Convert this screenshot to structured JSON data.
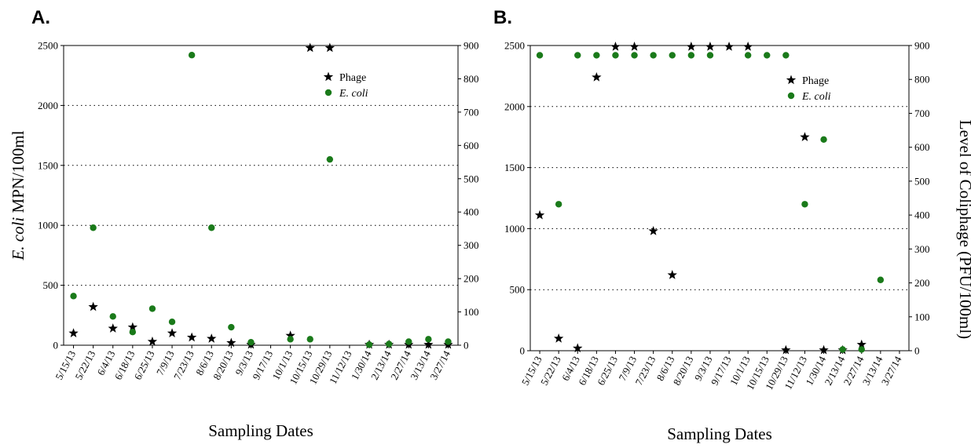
{
  "chart_data": [
    {
      "panel": "A.",
      "type": "scatter",
      "xlabel": "Sampling Dates",
      "ylabel_left": {
        "italic": "E. coli",
        "rest": " MPN/100ml"
      },
      "ylabel_right": "",
      "ylim_left": [
        0,
        2500
      ],
      "ylim_right": [
        0,
        900
      ],
      "yticks_left": [
        0,
        500,
        1000,
        1500,
        2000,
        2500
      ],
      "yticks_right": [
        0,
        100,
        200,
        300,
        400,
        500,
        600,
        700,
        800,
        900
      ],
      "gridlines_left": [
        500,
        1000,
        1500,
        2000
      ],
      "categories": [
        "5/15/13",
        "5/22/13",
        "6/4/13",
        "6/18/13",
        "6/25/13",
        "7/9/13",
        "7/23/13",
        "8/6/13",
        "8/20/13",
        "9/3/13",
        "9/17/13",
        "10/1/13",
        "10/15/13",
        "10/29/13",
        "11/12/13",
        "1/30/14",
        "2/13/14",
        "2/27/14",
        "3/13/14",
        "3/27/14"
      ],
      "legend": {
        "position": "top-right",
        "entries": [
          {
            "symbol": "star",
            "label": "Phage",
            "italic": false
          },
          {
            "symbol": "circle",
            "label": "E. coli",
            "italic": true
          }
        ]
      },
      "colors": {
        "phage": "#000000",
        "ecoli": "#1a7a1a"
      },
      "series": [
        {
          "name": "Phage",
          "symbol": "star",
          "axis": "left",
          "points": [
            [
              0.5,
              100
            ],
            [
              1.5,
              320
            ],
            [
              2.5,
              140
            ],
            [
              3.5,
              150
            ],
            [
              4.5,
              30
            ],
            [
              5.5,
              100
            ],
            [
              6.5,
              65
            ],
            [
              7.5,
              55
            ],
            [
              8.5,
              20
            ],
            [
              9.5,
              5
            ],
            [
              11.5,
              80
            ],
            [
              12.5,
              2480
            ],
            [
              13.5,
              2480
            ],
            [
              15.5,
              5
            ],
            [
              16.5,
              5
            ],
            [
              17.5,
              5
            ],
            [
              18.5,
              5
            ],
            [
              19.5,
              5
            ]
          ]
        },
        {
          "name": "E. coli",
          "symbol": "circle",
          "axis": "left",
          "points": [
            [
              0.5,
              410
            ],
            [
              1.5,
              980
            ],
            [
              2.5,
              240
            ],
            [
              3.5,
              110
            ],
            [
              4.5,
              305
            ],
            [
              5.5,
              195
            ],
            [
              6.5,
              2420
            ],
            [
              7.5,
              980
            ],
            [
              8.5,
              150
            ],
            [
              9.5,
              25
            ],
            [
              11.5,
              50
            ],
            [
              12.5,
              50
            ],
            [
              13.5,
              1550
            ],
            [
              15.5,
              5
            ],
            [
              16.5,
              10
            ],
            [
              17.5,
              30
            ],
            [
              18.5,
              50
            ],
            [
              19.5,
              30
            ]
          ]
        }
      ]
    },
    {
      "panel": "B.",
      "type": "scatter",
      "xlabel": "Sampling Dates",
      "ylabel_left": {
        "italic": "",
        "rest": ""
      },
      "ylabel_right": "Level of Coliphage (PFU/100ml)",
      "ylim_left": [
        0,
        2500
      ],
      "ylim_right": [
        0,
        900
      ],
      "yticks_left": [
        0,
        500,
        1000,
        1500,
        2000,
        2500
      ],
      "yticks_right": [
        0,
        100,
        200,
        300,
        400,
        500,
        600,
        700,
        800,
        900
      ],
      "gridlines_left": [
        500,
        1000,
        1500,
        2000
      ],
      "categories": [
        "5/15/13",
        "5/22/13",
        "6/4/13",
        "6/18/13",
        "6/25/13",
        "7/9/13",
        "7/23/13",
        "8/6/13",
        "8/20/13",
        "9/3/13",
        "9/17/13",
        "10/1/13",
        "10/15/13",
        "10/29/13",
        "11/12/13",
        "1/30/14",
        "2/13/14",
        "2/27/14",
        "3/13/14",
        "3/27/14"
      ],
      "legend": {
        "position": "top-right",
        "entries": [
          {
            "symbol": "star",
            "label": "Phage",
            "italic": false
          },
          {
            "symbol": "circle",
            "label": "E. coli",
            "italic": true
          }
        ]
      },
      "colors": {
        "phage": "#000000",
        "ecoli": "#1a7a1a"
      },
      "series": [
        {
          "name": "Phage",
          "symbol": "star",
          "axis": "left",
          "points": [
            [
              0.5,
              1110
            ],
            [
              1.5,
              100
            ],
            [
              2.5,
              20
            ],
            [
              3.5,
              2240
            ],
            [
              4.5,
              2490
            ],
            [
              5.5,
              2490
            ],
            [
              6.5,
              980
            ],
            [
              7.5,
              620
            ],
            [
              8.5,
              2490
            ],
            [
              9.5,
              2490
            ],
            [
              10.5,
              2490
            ],
            [
              11.5,
              2490
            ],
            [
              13.5,
              5
            ],
            [
              14.5,
              1750
            ],
            [
              15.5,
              5
            ],
            [
              16.5,
              5
            ],
            [
              17.5,
              50
            ]
          ]
        },
        {
          "name": "E. coli",
          "symbol": "circle",
          "axis": "left",
          "points": [
            [
              0.5,
              2420
            ],
            [
              1.5,
              1200
            ],
            [
              2.5,
              2420
            ],
            [
              3.5,
              2420
            ],
            [
              4.5,
              2420
            ],
            [
              5.5,
              2420
            ],
            [
              6.5,
              2420
            ],
            [
              7.5,
              2420
            ],
            [
              8.5,
              2420
            ],
            [
              9.5,
              2420
            ],
            [
              11.5,
              2420
            ],
            [
              12.5,
              2420
            ],
            [
              13.5,
              2420
            ],
            [
              14.5,
              1200
            ],
            [
              15.5,
              1730
            ],
            [
              16.5,
              10
            ],
            [
              17.5,
              10
            ],
            [
              18.5,
              580
            ]
          ]
        }
      ]
    }
  ]
}
